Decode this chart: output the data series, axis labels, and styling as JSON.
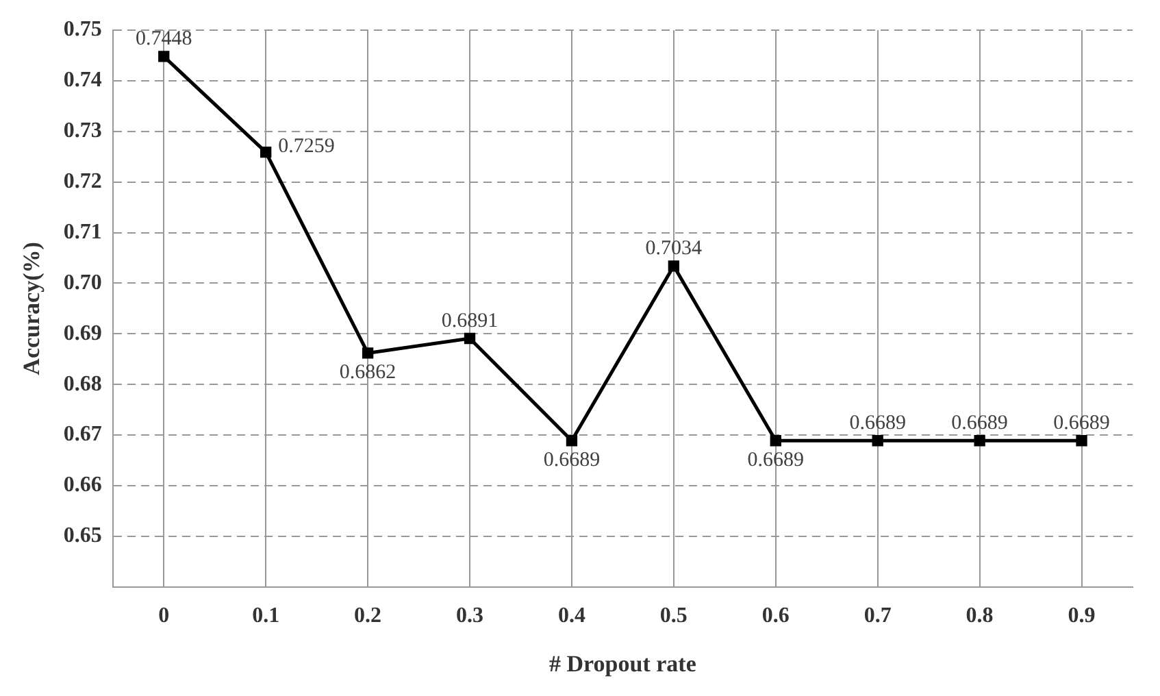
{
  "chart_data": {
    "type": "line",
    "xlabel": "# Dropout rate",
    "ylabel": "Accuracy(%)",
    "categories": [
      "0",
      "0.1",
      "0.2",
      "0.3",
      "0.4",
      "0.5",
      "0.6",
      "0.7",
      "0.8",
      "0.9"
    ],
    "series": [
      {
        "color": "#000000",
        "values": [
          0.7448,
          0.7259,
          0.6862,
          0.6891,
          0.6689,
          0.7034,
          0.6689,
          0.6689,
          0.6689,
          0.6689
        ]
      }
    ],
    "ylim": [
      0.64,
      0.75
    ],
    "yticks": [
      0.65,
      0.66,
      0.67,
      0.68,
      0.69,
      {
        "value": 0.7,
        "label": "0.70"
      },
      0.71,
      0.72,
      0.73,
      0.74,
      0.75
    ],
    "grid": true,
    "legend": false,
    "marker": "square",
    "line_style": "solid",
    "data_labels": true
  }
}
